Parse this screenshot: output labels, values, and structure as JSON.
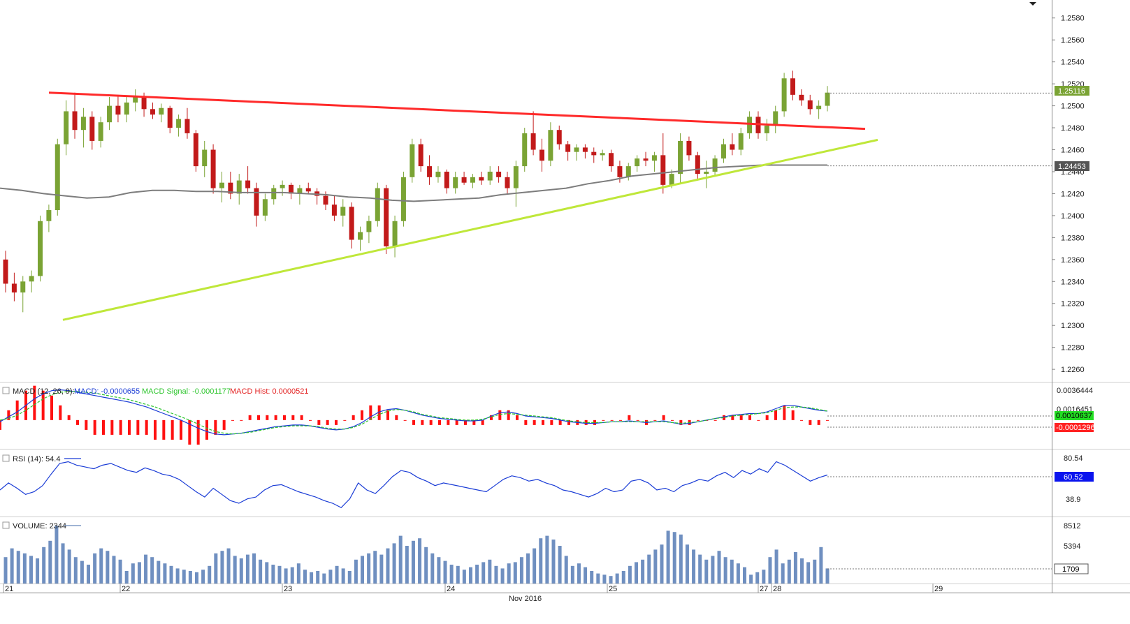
{
  "chart_data": {
    "type": "candlestick",
    "x_axis": {
      "day_labels": [
        "21",
        "22",
        "23",
        "24",
        "25",
        "27",
        "28",
        "29"
      ],
      "month_label": "Nov 2016"
    },
    "price_panel": {
      "y_ticks": [
        "1.2580",
        "1.2560",
        "1.2540",
        "1.2520",
        "1.2500",
        "1.2480",
        "1.2460",
        "1.2440",
        "1.2420",
        "1.2400",
        "1.2380",
        "1.2360",
        "1.2340",
        "1.2320",
        "1.2300",
        "1.2280",
        "1.2260"
      ],
      "ylim": [
        1.2255,
        1.259
      ],
      "last_price": "1.25116",
      "ma_value": "1.24453",
      "candles": [
        [
          1.236,
          1.2368,
          1.233,
          1.2338
        ],
        [
          1.2338,
          1.2348,
          1.2322,
          1.233
        ],
        [
          1.233,
          1.2345,
          1.2312,
          1.234
        ],
        [
          1.234,
          1.235,
          1.233,
          1.2345
        ],
        [
          1.2345,
          1.24,
          1.234,
          1.2395
        ],
        [
          1.2395,
          1.241,
          1.2385,
          1.2405
        ],
        [
          1.2405,
          1.247,
          1.24,
          1.2465
        ],
        [
          1.2465,
          1.2505,
          1.2455,
          1.2495
        ],
        [
          1.2495,
          1.2512,
          1.247,
          1.2478
        ],
        [
          1.2478,
          1.2498,
          1.2462,
          1.249
        ],
        [
          1.249,
          1.2495,
          1.246,
          1.2468
        ],
        [
          1.2468,
          1.249,
          1.2462,
          1.2485
        ],
        [
          1.2485,
          1.2508,
          1.2478,
          1.25
        ],
        [
          1.25,
          1.251,
          1.2485,
          1.2492
        ],
        [
          1.2492,
          1.2508,
          1.2485,
          1.2503
        ],
        [
          1.2503,
          1.2515,
          1.2495,
          1.2508
        ],
        [
          1.2508,
          1.2512,
          1.249,
          1.2497
        ],
        [
          1.2497,
          1.2503,
          1.2488,
          1.2492
        ],
        [
          1.2492,
          1.2502,
          1.2485,
          1.2498
        ],
        [
          1.2498,
          1.25,
          1.2475,
          1.248
        ],
        [
          1.248,
          1.2492,
          1.2472,
          1.2488
        ],
        [
          1.2488,
          1.2498,
          1.247,
          1.2475
        ],
        [
          1.2475,
          1.2478,
          1.244,
          1.2445
        ],
        [
          1.2445,
          1.2468,
          1.2435,
          1.246
        ],
        [
          1.246,
          1.2465,
          1.242,
          1.2425
        ],
        [
          1.2425,
          1.244,
          1.2412,
          1.243
        ],
        [
          1.243,
          1.244,
          1.2415,
          1.242
        ],
        [
          1.242,
          1.2438,
          1.241,
          1.2432
        ],
        [
          1.2432,
          1.2445,
          1.242,
          1.2425
        ],
        [
          1.2425,
          1.243,
          1.239,
          1.24
        ],
        [
          1.24,
          1.242,
          1.2395,
          1.2415
        ],
        [
          1.2415,
          1.2428,
          1.241,
          1.2425
        ],
        [
          1.2425,
          1.2432,
          1.2418,
          1.2428
        ],
        [
          1.2428,
          1.243,
          1.2415,
          1.242
        ],
        [
          1.242,
          1.2428,
          1.241,
          1.2425
        ],
        [
          1.2425,
          1.243,
          1.242,
          1.2422
        ],
        [
          1.2422,
          1.2425,
          1.241,
          1.2418
        ],
        [
          1.2418,
          1.2422,
          1.2405,
          1.241
        ],
        [
          1.241,
          1.2418,
          1.2395,
          1.24
        ],
        [
          1.24,
          1.2415,
          1.239,
          1.2408
        ],
        [
          1.2408,
          1.2412,
          1.237,
          1.2378
        ],
        [
          1.2378,
          1.239,
          1.2368,
          1.2385
        ],
        [
          1.2385,
          1.24,
          1.2375,
          1.2395
        ],
        [
          1.2395,
          1.243,
          1.239,
          1.2425
        ],
        [
          1.2425,
          1.2428,
          1.2365,
          1.2372
        ],
        [
          1.2372,
          1.24,
          1.2362,
          1.2395
        ],
        [
          1.2395,
          1.244,
          1.239,
          1.2435
        ],
        [
          1.2435,
          1.247,
          1.243,
          1.2465
        ],
        [
          1.2465,
          1.247,
          1.244,
          1.2445
        ],
        [
          1.2445,
          1.2455,
          1.2428,
          1.2435
        ],
        [
          1.2435,
          1.2445,
          1.243,
          1.244
        ],
        [
          1.244,
          1.2442,
          1.242,
          1.2425
        ],
        [
          1.2425,
          1.244,
          1.242,
          1.2435
        ],
        [
          1.2435,
          1.244,
          1.2428,
          1.243
        ],
        [
          1.243,
          1.2438,
          1.2425,
          1.2435
        ],
        [
          1.2435,
          1.244,
          1.2428,
          1.2432
        ],
        [
          1.2432,
          1.2445,
          1.2428,
          1.244
        ],
        [
          1.244,
          1.2445,
          1.243,
          1.2435
        ],
        [
          1.2435,
          1.244,
          1.242,
          1.2425
        ],
        [
          1.2425,
          1.245,
          1.2408,
          1.2445
        ],
        [
          1.2445,
          1.248,
          1.244,
          1.2475
        ],
        [
          1.2475,
          1.2495,
          1.2455,
          1.246
        ],
        [
          1.246,
          1.247,
          1.244,
          1.245
        ],
        [
          1.245,
          1.2485,
          1.2445,
          1.2478
        ],
        [
          1.2478,
          1.2482,
          1.246,
          1.2465
        ],
        [
          1.2465,
          1.2468,
          1.245,
          1.2458
        ],
        [
          1.2458,
          1.2465,
          1.245,
          1.2462
        ],
        [
          1.2462,
          1.2465,
          1.2452,
          1.2458
        ],
        [
          1.2458,
          1.2462,
          1.2448,
          1.2455
        ],
        [
          1.2455,
          1.246,
          1.245,
          1.2457
        ],
        [
          1.2457,
          1.246,
          1.244,
          1.2445
        ],
        [
          1.2445,
          1.245,
          1.243,
          1.2435
        ],
        [
          1.2435,
          1.2448,
          1.2432,
          1.2445
        ],
        [
          1.2445,
          1.2455,
          1.244,
          1.2452
        ],
        [
          1.2452,
          1.2458,
          1.2445,
          1.245
        ],
        [
          1.245,
          1.2458,
          1.244,
          1.2455
        ],
        [
          1.2455,
          1.2475,
          1.242,
          1.2428
        ],
        [
          1.2428,
          1.2442,
          1.2425,
          1.2438
        ],
        [
          1.2438,
          1.2475,
          1.243,
          1.2468
        ],
        [
          1.2468,
          1.2472,
          1.245,
          1.2455
        ],
        [
          1.2455,
          1.2458,
          1.2432,
          1.2438
        ],
        [
          1.2438,
          1.245,
          1.2425,
          1.244
        ],
        [
          1.244,
          1.2455,
          1.2436,
          1.2452
        ],
        [
          1.2452,
          1.247,
          1.2448,
          1.2465
        ],
        [
          1.2465,
          1.2475,
          1.2455,
          1.246
        ],
        [
          1.246,
          1.248,
          1.2455,
          1.2475
        ],
        [
          1.2475,
          1.2495,
          1.247,
          1.249
        ],
        [
          1.249,
          1.2495,
          1.247,
          1.2475
        ],
        [
          1.2475,
          1.2488,
          1.2468,
          1.2482
        ],
        [
          1.2482,
          1.25,
          1.2475,
          1.2495
        ],
        [
          1.2495,
          1.253,
          1.249,
          1.2525
        ],
        [
          1.2525,
          1.2532,
          1.2505,
          1.251
        ],
        [
          1.251,
          1.2515,
          1.25,
          1.2505
        ],
        [
          1.2505,
          1.251,
          1.2492,
          1.2497
        ],
        [
          1.2497,
          1.2505,
          1.2488,
          1.25
        ],
        [
          1.25,
          1.2518,
          1.2495,
          1.2512
        ]
      ],
      "ma200": [
        1.2425,
        1.2423,
        1.242,
        1.2418,
        1.2416,
        1.2417,
        1.2421,
        1.2423,
        1.2423,
        1.2422,
        1.2422,
        1.2421,
        1.2421,
        1.2421,
        1.242,
        1.2419,
        1.2417,
        1.2416,
        1.2414,
        1.2413,
        1.2414,
        1.2415,
        1.2416,
        1.2419,
        1.2421,
        1.2423,
        1.2425,
        1.2429,
        1.2432,
        1.2436,
        1.2438,
        1.244,
        1.2442,
        1.2444,
        1.2445,
        1.2446,
        1.2446,
        1.2446,
        1.2446
      ],
      "resistance_line": {
        "start": [
          1.2512
        ],
        "end": [
          1.2479
        ]
      },
      "support_line": {
        "start": [
          1.2305
        ],
        "end": [
          1.2469
        ]
      }
    },
    "macd_panel": {
      "label": "MACD (12, 26, 9):",
      "macd_label": "MACD: -0.0000655",
      "signal_label": "MACD Signal: -0.0001177",
      "hist_label": "MACD Hist: 0.0000521",
      "y_ticks": [
        "0.0036444",
        "0.0016451"
      ],
      "macd_value": "0.0010637",
      "signal_value": "-0.0001296",
      "ylim": [
        -0.003,
        0.004
      ],
      "macd": [
        -0.0002,
        0.0004,
        0.001,
        0.0018,
        0.0026,
        0.0032,
        0.0036,
        0.0037,
        0.0036,
        0.0034,
        0.0032,
        0.003,
        0.0028,
        0.0026,
        0.0024,
        0.0022,
        0.0019,
        0.0016,
        0.0012,
        0.0008,
        0.0004,
        0.0,
        -0.0005,
        -0.001,
        -0.0014,
        -0.0017,
        -0.0018,
        -0.0017,
        -0.0016,
        -0.0014,
        -0.0012,
        -0.001,
        -0.0008,
        -0.0007,
        -0.0006,
        -0.0006,
        -0.0007,
        -0.0009,
        -0.0011,
        -0.0012,
        -0.0011,
        -0.0008,
        -0.0003,
        0.0004,
        0.001,
        0.0013,
        0.0014,
        0.0012,
        0.0009,
        0.0006,
        0.0004,
        0.0002,
        0.0001,
        0.0,
        -0.0001,
        -0.0001,
        0.0,
        0.0005,
        0.0009,
        0.001,
        0.0008,
        0.0005,
        0.0004,
        0.0003,
        0.0002,
        0.0,
        -0.0002,
        -0.0003,
        -0.0004,
        -0.0004,
        -0.0003,
        -0.0002,
        -0.0002,
        -0.0001,
        -0.0002,
        -0.0003,
        -0.0002,
        -0.0001,
        -0.0003,
        -0.0005,
        -0.0004,
        -0.0002,
        0.0,
        0.0002,
        0.0004,
        0.0006,
        0.0007,
        0.0008,
        0.0008,
        0.001,
        0.0014,
        0.0018,
        0.0018,
        0.0016,
        0.0014,
        0.0012,
        0.0011
      ],
      "signal": [
        0.0,
        0.0002,
        0.0006,
        0.0012,
        0.0019,
        0.0026,
        0.0031,
        0.0034,
        0.0035,
        0.0035,
        0.0034,
        0.0033,
        0.0031,
        0.0029,
        0.0027,
        0.0025,
        0.0022,
        0.0019,
        0.0016,
        0.0012,
        0.0008,
        0.0004,
        0.0,
        -0.0005,
        -0.001,
        -0.0014,
        -0.0016,
        -0.0017,
        -0.0016,
        -0.0015,
        -0.0013,
        -0.0011,
        -0.0009,
        -0.0008,
        -0.0007,
        -0.0007,
        -0.0007,
        -0.0008,
        -0.001,
        -0.0011,
        -0.0011,
        -0.0009,
        -0.0005,
        0.0001,
        0.0007,
        0.0011,
        0.0013,
        0.0012,
        0.001,
        0.0007,
        0.0005,
        0.0003,
        0.0002,
        0.0001,
        0.0,
        0.0,
        0.0001,
        0.0004,
        0.0007,
        0.0008,
        0.0007,
        0.0006,
        0.0005,
        0.0004,
        0.0003,
        0.0001,
        -0.0001,
        -0.0002,
        -0.0003,
        -0.0003,
        -0.0003,
        -0.0002,
        -0.0002,
        -0.0002,
        -0.0002,
        -0.0002,
        -0.0002,
        -0.0002,
        -0.0003,
        -0.0004,
        -0.0003,
        -0.0002,
        0.0,
        0.0002,
        0.0003,
        0.0005,
        0.0006,
        0.0007,
        0.0008,
        0.0009,
        0.0012,
        0.0015,
        0.0016,
        0.0016,
        0.0015,
        0.0013,
        0.0011
      ]
    },
    "rsi_panel": {
      "label": "RSI (14): 54.4",
      "y_ticks": [
        "80.54",
        "38.9"
      ],
      "value": "60.52",
      "ylim": [
        20,
        95
      ],
      "values": [
        50,
        58,
        52,
        45,
        48,
        55,
        68,
        80,
        82,
        78,
        76,
        74,
        78,
        80,
        76,
        72,
        70,
        75,
        72,
        68,
        66,
        62,
        55,
        48,
        42,
        52,
        45,
        38,
        35,
        40,
        42,
        50,
        55,
        56,
        52,
        48,
        45,
        42,
        38,
        35,
        30,
        40,
        58,
        50,
        46,
        55,
        65,
        72,
        70,
        64,
        60,
        55,
        58,
        56,
        54,
        52,
        50,
        48,
        55,
        62,
        66,
        64,
        60,
        62,
        58,
        55,
        50,
        48,
        45,
        42,
        46,
        52,
        48,
        50,
        60,
        62,
        58,
        50,
        52,
        48,
        55,
        58,
        62,
        60,
        66,
        70,
        64,
        72,
        68,
        74,
        70,
        82,
        78,
        72,
        66,
        60,
        64,
        67
      ]
    },
    "volume_panel": {
      "label": "VOLUME: 2344",
      "y_ticks": [
        "8512",
        "5394"
      ],
      "value": "1709",
      "ylim": [
        0,
        10000
      ],
      "values": [
        4200,
        5600,
        5200,
        4800,
        4400,
        4000,
        5800,
        6800,
        9200,
        6400,
        5400,
        4200,
        3600,
        3000,
        4800,
        5600,
        5200,
        4400,
        3800,
        2000,
        3200,
        3400,
        4600,
        4200,
        3600,
        3200,
        2800,
        2400,
        2200,
        2000,
        1800,
        2200,
        2800,
        4800,
        5200,
        5600,
        4400,
        4000,
        4600,
        4800,
        3800,
        3400,
        3000,
        2800,
        2400,
        2600,
        3200,
        2200,
        1800,
        2000,
        1600,
        2200,
        2800,
        2400,
        2000,
        3800,
        4400,
        4800,
        5200,
        4600,
        5600,
        6400,
        7600,
        6000,
        6800,
        7200,
        5800,
        4800,
        4200,
        3600,
        3000,
        2800,
        2200,
        2600,
        3000,
        3400,
        3800,
        2800,
        2400,
        3200,
        3400,
        4200,
        4800,
        5600,
        7200,
        7600,
        7000,
        6000,
        4400,
        2800,
        3200,
        2600,
        2000,
        1600,
        1400,
        1200,
        1600,
        2000,
        2800,
        3400,
        3800,
        4600,
        5400,
        6200,
        8400,
        8200,
        7800,
        6200,
        5400,
        4600,
        3800,
        4400,
        5200,
        4200,
        3800,
        3200,
        2600,
        1400,
        1800,
        2200,
        4200,
        5400,
        3200,
        3800,
        5000,
        4000,
        3400,
        3800,
        5800,
        2400
      ]
    }
  }
}
